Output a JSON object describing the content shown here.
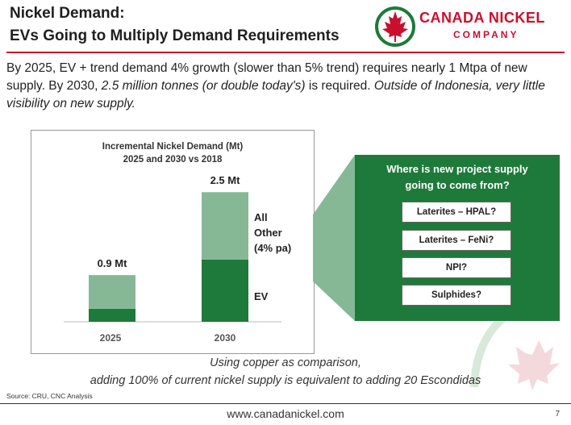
{
  "header": {
    "title_line1": "Nickel Demand:",
    "title_line2": "EVs Going to Multiply Demand Requirements"
  },
  "logo": {
    "name_line1": "CANADA NICKEL",
    "name_line2": "COMPANY",
    "icon": "maple-leaf-icon"
  },
  "intro": {
    "part1": "By 2025, EV + trend demand 4% growth (slower than 5% trend) requires nearly 1 Mtpa of new supply.  By 2030, ",
    "part2_italic": "2.5 million tonnes (or double today's)",
    "part3": " is required. ",
    "part4_italic": "Outside of Indonesia, very little visibility on new supply."
  },
  "chart_data": {
    "type": "bar",
    "stacked": true,
    "title": "Incremental Nickel Demand (Mt)",
    "subtitle": "2025 and 2030 vs 2018",
    "categories": [
      "2025",
      "2030"
    ],
    "series": [
      {
        "name": "EV",
        "values": [
          0.25,
          1.2
        ],
        "color": "#1e7a3a"
      },
      {
        "name": "All Other (4% pa)",
        "values": [
          0.65,
          1.3
        ],
        "color": "#86b896"
      }
    ],
    "totals_labels": [
      "0.9 Mt",
      "2.5 Mt"
    ],
    "segment_labels": {
      "other": [
        "All",
        "Other",
        "(4% pa)"
      ],
      "ev": "EV"
    },
    "ylim": [
      0,
      2.8
    ]
  },
  "supply_box": {
    "title_line1": "Where is new project supply",
    "title_line2": "going to come from?",
    "options": [
      "Laterites – HPAL?",
      "Laterites – FeNi?",
      "NPI?",
      "Sulphides?"
    ]
  },
  "note": {
    "line1": "Using copper as comparison,",
    "line2": "adding 100% of current nickel supply is equivalent to adding 20 Escondidas"
  },
  "source": "Source: CRU, CNC Analysis",
  "footer": {
    "website": "www.canadanickel.com",
    "page": "7"
  },
  "colors": {
    "brand_red": "#c8102e",
    "dark_green": "#1e7a3a",
    "light_green": "#86b896"
  }
}
